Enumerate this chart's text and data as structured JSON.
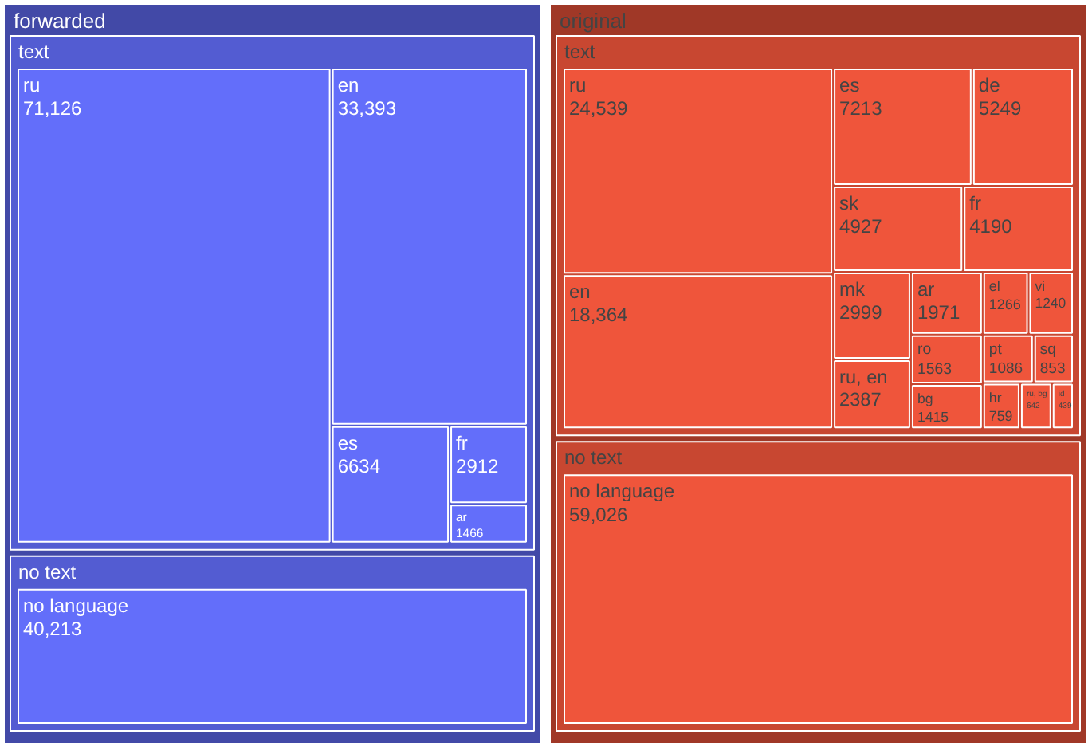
{
  "chart_data": [
    {
      "type": "other",
      "title": "forwarded",
      "categories": [
        "ru",
        "en",
        "es",
        "fr",
        "ar",
        "no language"
      ],
      "series": [
        {
          "name": "text",
          "color": "#636efa",
          "values": [
            71126,
            33393,
            6634,
            2912,
            1466,
            null
          ],
          "value_labels": [
            "71,126",
            "33,393",
            "6634",
            "2912",
            "1466",
            null
          ]
        },
        {
          "name": "no text",
          "color": "#636efa",
          "values": [
            null,
            null,
            null,
            null,
            null,
            40213
          ],
          "value_labels": [
            null,
            null,
            null,
            null,
            null,
            "40,213"
          ]
        }
      ]
    },
    {
      "type": "other",
      "title": "original",
      "categories": [
        "ru",
        "en",
        "es",
        "de",
        "sk",
        "fr",
        "mk",
        "ru, en",
        "ar",
        "ro",
        "bg",
        "el",
        "vi",
        "pt",
        "sq",
        "hr",
        "ru, bg",
        "id",
        "no language"
      ],
      "series": [
        {
          "name": "text",
          "color": "#ef553b",
          "values": [
            24539,
            18364,
            7213,
            5249,
            4927,
            4190,
            2999,
            2387,
            1971,
            1563,
            1415,
            1266,
            1240,
            1086,
            853,
            759,
            642,
            439,
            null
          ],
          "value_labels": [
            "24,539",
            "18,364",
            "7213",
            "5249",
            "4927",
            "4190",
            "2999",
            "2387",
            "1971",
            "1563",
            "1415",
            "1266",
            "1240",
            "1086",
            "853",
            "759",
            "642",
            "439",
            null
          ]
        },
        {
          "name": "no text",
          "color": "#ef553b",
          "values": [
            null,
            null,
            null,
            null,
            null,
            null,
            null,
            null,
            null,
            null,
            null,
            null,
            null,
            null,
            null,
            null,
            null,
            null,
            59026
          ],
          "value_labels": [
            null,
            null,
            null,
            null,
            null,
            null,
            null,
            null,
            null,
            null,
            null,
            null,
            null,
            null,
            null,
            null,
            null,
            null,
            "59,026"
          ]
        }
      ]
    }
  ]
}
